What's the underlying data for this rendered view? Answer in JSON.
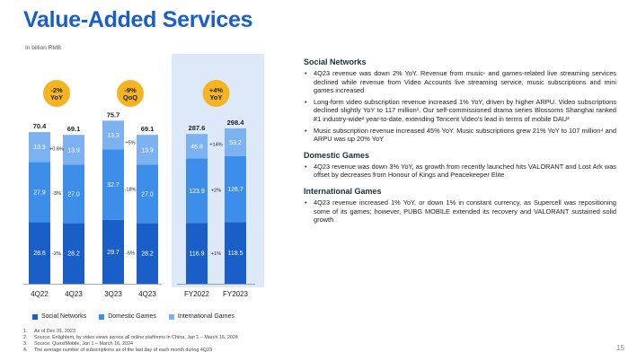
{
  "page": {
    "title": "Value-Added Services",
    "unit": "In billion RMB",
    "page_number": "15"
  },
  "colors": {
    "social": "#1a5fc7",
    "domestic": "#3d8ee8",
    "international": "#7cb2ef",
    "badge": "#f5b522",
    "highlight": "#dde9f8"
  },
  "chart_data": {
    "type": "bar",
    "stacked": true,
    "categories": [
      "4Q22",
      "4Q23",
      "3Q23",
      "4Q23",
      "FY2022",
      "FY2023"
    ],
    "series": [
      {
        "name": "Social Networks",
        "values": [
          28.6,
          28.2,
          29.7,
          28.2,
          116.9,
          118.5
        ]
      },
      {
        "name": "Domestic Games",
        "values": [
          27.9,
          27.0,
          32.7,
          27.0,
          123.9,
          126.7
        ]
      },
      {
        "name": "International Games",
        "values": [
          13.9,
          13.9,
          13.3,
          13.9,
          46.8,
          53.2
        ]
      }
    ],
    "totals": [
      "70.4",
      "69.1",
      "75.7",
      "69.1",
      "287.6",
      "298.4"
    ],
    "segment_labels": [
      [
        "28.6",
        "27.9",
        "13.9"
      ],
      [
        "28.2",
        "27.0",
        "13.9"
      ],
      [
        "29.7",
        "32.7",
        "13.3"
      ],
      [
        "28.2",
        "27.0",
        "13.9"
      ],
      [
        "116.9",
        "123.9",
        "46.8"
      ],
      [
        "118.5",
        "126.7",
        "53.2"
      ]
    ],
    "groups": [
      {
        "bars": [
          0,
          1
        ],
        "badge": [
          "-2%",
          "YoY"
        ],
        "changes": [
          "-2%",
          "-3%",
          "+0.6%"
        ]
      },
      {
        "bars": [
          2,
          3
        ],
        "badge": [
          "-9%",
          "QoQ"
        ],
        "changes": [
          "-5%",
          "-18%",
          "+5%"
        ]
      },
      {
        "bars": [
          4,
          5
        ],
        "badge": [
          "+4%",
          "YoY"
        ],
        "changes": [
          "+1%",
          "+2%",
          "+14%"
        ]
      }
    ],
    "legend_position": "bottom"
  },
  "legend": [
    {
      "label": "Social Networks"
    },
    {
      "label": "Domestic Games"
    },
    {
      "label": "International Games"
    }
  ],
  "sections": [
    {
      "heading": "Social Networks",
      "bullets": [
        "4Q23 revenue was down 2% YoY. Revenue from music- and games-related live streaming services declined while revenue from Video Accounts live streaming service, music subscriptions and mini games increased",
        "Long-form video subscription revenue increased 1% YoY, driven by higher ARPU. Video subscriptions declined slightly YoY to 117 million¹. Our self-commissioned drama series Blossoms Shanghai ranked #1 industry-wide² year-to-date, extending Tencent Video's lead in terms of mobile DAU³",
        "Music subscription revenue increased 45% YoY. Music subscriptions grew 21% YoY to 107 million⁴ and ARPU was up 20% YoY"
      ]
    },
    {
      "heading": "Domestic Games",
      "bullets": [
        "4Q23 revenue was down 3% YoY, as growth from recently launched hits VALORANT and Lost Ark was offset by decreases from Honour of Kings and Peacekeeper Elite"
      ]
    },
    {
      "heading": "International Games",
      "bullets": [
        "4Q23 revenue increased 1% YoY, or down 1% in constant currency, as Supercell was repositioning some of its games; however, PUBG MOBILE extended its recovery and VALORANT sustained solid growth"
      ]
    }
  ],
  "footnotes": [
    {
      "num": "1.",
      "text": "As of Dec 31, 2023"
    },
    {
      "num": "2.",
      "text": "Source: Enlightent, by video views across all online platforms in China, Jan 1 – March 16, 2024"
    },
    {
      "num": "3.",
      "text": "Source: QuestMobile, Jan 1 – March 16, 2024"
    },
    {
      "num": "4.",
      "text": "The average number of subscriptions as of the last day of each month during 4Q23"
    }
  ]
}
